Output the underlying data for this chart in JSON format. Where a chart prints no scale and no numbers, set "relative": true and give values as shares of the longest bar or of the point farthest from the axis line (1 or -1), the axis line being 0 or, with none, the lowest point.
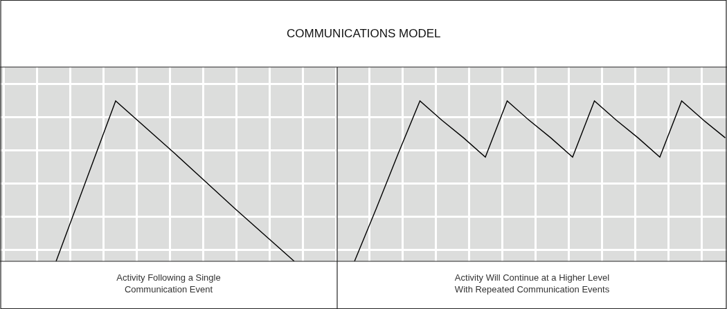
{
  "chart_data": [
    {
      "type": "line",
      "title": "COMMUNICATIONS MODEL",
      "xlabel": "Activity Following a Single\nCommunication Event",
      "relative": true,
      "grid": true,
      "categories": [
        null,
        null,
        null,
        null,
        null
      ],
      "series": [
        {
          "color": "#000000",
          "values": [
            0,
            1,
            0.67,
            0.33,
            0
          ]
        }
      ]
    },
    {
      "type": "line",
      "xlabel": "Activity Will Continue at a Higher Level\nWith Repeated Communication Events",
      "relative": true,
      "grid": true,
      "categories": [
        null,
        null,
        null,
        null,
        null,
        null,
        null,
        null,
        null,
        null,
        null,
        null,
        null,
        null,
        null,
        null,
        null,
        null
      ],
      "series": [
        {
          "color": "#000000",
          "values": [
            0,
            0.33,
            0.67,
            1,
            0.88,
            0.77,
            0.65,
            1,
            0.88,
            0.77,
            0.65,
            1,
            0.88,
            0.77,
            0.65,
            1,
            0.88,
            0.77
          ]
        }
      ]
    }
  ]
}
